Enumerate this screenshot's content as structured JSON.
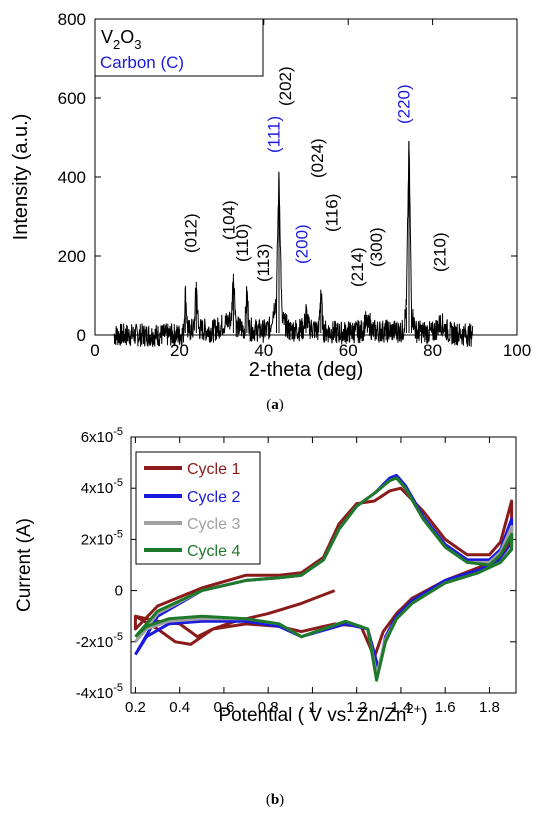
{
  "chart_data": [
    {
      "type": "line",
      "caption": "(a)",
      "xlabel": "2-theta (deg)",
      "ylabel": "Intensity (a.u.)",
      "xlim": [
        0,
        100
      ],
      "ylim": [
        0,
        800
      ],
      "xticks": [
        "0",
        "20",
        "40",
        "60",
        "80",
        "100"
      ],
      "yticks": [
        "0",
        "200",
        "400",
        "600",
        "800"
      ],
      "legend": {
        "position": "top-left",
        "entries": [
          {
            "label": "V2O3",
            "color": "#000000"
          },
          {
            "label": "Carbon (C)",
            "color": "#1a1adf"
          }
        ]
      },
      "series": [
        {
          "color": "#000000",
          "x": [
            4.5,
            10,
            15,
            20,
            21,
            21.4,
            22,
            23.5,
            24,
            24.5,
            28,
            32.3,
            32.8,
            33.5,
            35.5,
            36,
            36.6,
            40,
            41.5,
            42,
            43,
            43.6,
            44.3,
            46,
            49.5,
            50,
            50.6,
            53,
            53.5,
            54.1,
            58,
            63.5,
            64,
            64.6,
            65.2,
            65.6,
            73,
            73.8,
            74.4,
            75,
            76,
            80,
            82,
            84,
            89.5
          ],
          "y": [
            0,
            0,
            0,
            0,
            5,
            110,
            10,
            15,
            135,
            15,
            10,
            40,
            155,
            20,
            15,
            110,
            15,
            10,
            18,
            50,
            95,
            410,
            40,
            12,
            15,
            60,
            20,
            10,
            115,
            10,
            5,
            10,
            35,
            20,
            30,
            10,
            10,
            70,
            490,
            60,
            10,
            5,
            30,
            5,
            0
          ]
        }
      ],
      "annotations": [
        {
          "label": "(012)",
          "x": 24,
          "color": "#000000"
        },
        {
          "label": "(104)",
          "x": 33,
          "color": "#000000"
        },
        {
          "label": "(110)",
          "x": 36.2,
          "color": "#000000"
        },
        {
          "label": "(113)",
          "x": 41.2,
          "color": "#000000"
        },
        {
          "label": "(111)",
          "x": 43.7,
          "color": "#1a1adf"
        },
        {
          "label": "(202)",
          "x": 46.5,
          "color": "#000000"
        },
        {
          "label": "(200)",
          "x": 50.3,
          "color": "#1a1adf"
        },
        {
          "label": "(024)",
          "x": 54,
          "color": "#000000"
        },
        {
          "label": "(116)",
          "x": 57.5,
          "color": "#000000"
        },
        {
          "label": "(214)",
          "x": 63.5,
          "color": "#000000"
        },
        {
          "label": "(300)",
          "x": 68,
          "color": "#000000"
        },
        {
          "label": "(220)",
          "x": 74.5,
          "color": "#1a1adf"
        },
        {
          "label": "(210)",
          "x": 83,
          "color": "#000000"
        }
      ]
    },
    {
      "type": "line",
      "caption": "(b)",
      "xlabel": "Potential ( V vs. Zn/Zn2+)",
      "ylabel": "Current (A)",
      "xlim": [
        0.18,
        1.92
      ],
      "ylim": [
        -4e-05,
        6e-05
      ],
      "xticks": [
        "0.2",
        "0.4",
        "0.6",
        "0.8",
        "1",
        "1.2",
        "1.4",
        "1.6",
        "1.8"
      ],
      "yticks": [
        "-4x10-5",
        "-2x10-5",
        "0",
        "2x10-5",
        "4x10-5",
        "6x10-5"
      ],
      "legend": {
        "position": "top-left"
      },
      "series": [
        {
          "name": "Cycle 1",
          "color": "#8b1a1a",
          "x": [
            1.1,
            0.95,
            0.8,
            0.65,
            0.55,
            0.45,
            0.38,
            0.3,
            0.2,
            0.2,
            0.3,
            0.5,
            0.7,
            0.85,
            0.95,
            1.05,
            1.12,
            1.2,
            1.28,
            1.35,
            1.4,
            1.5,
            1.6,
            1.7,
            1.8,
            1.85,
            1.9,
            1.9,
            1.85,
            1.75,
            1.6,
            1.45,
            1.38,
            1.32,
            1.28,
            1.22,
            1.1,
            0.95,
            0.85,
            0.7,
            0.55,
            0.48,
            0.4,
            0.3,
            0.2
          ],
          "y": [
            0.0,
            -0.5,
            -0.9,
            -1.2,
            -1.5,
            -2.1,
            -2.0,
            -1.5,
            -1.0,
            -1.5,
            -0.6,
            0.1,
            0.6,
            0.6,
            0.7,
            1.3,
            2.6,
            3.4,
            3.5,
            3.9,
            4.0,
            3.1,
            2.0,
            1.4,
            1.4,
            1.9,
            3.5,
            2.0,
            1.3,
            0.9,
            0.4,
            -0.3,
            -0.9,
            -1.6,
            -2.6,
            -1.4,
            -1.3,
            -1.6,
            -1.4,
            -1.3,
            -1.5,
            -1.8,
            -1.3,
            -1.2,
            -1.0
          ]
        },
        {
          "name": "Cycle 2",
          "color": "#1a1adf",
          "x": [
            0.2,
            0.3,
            0.5,
            0.7,
            0.85,
            0.95,
            1.05,
            1.12,
            1.2,
            1.28,
            1.35,
            1.38,
            1.42,
            1.5,
            1.6,
            1.7,
            1.8,
            1.85,
            1.9,
            1.9,
            1.85,
            1.75,
            1.6,
            1.45,
            1.38,
            1.33,
            1.3,
            1.25,
            1.15,
            0.95,
            0.85,
            0.7,
            0.5,
            0.35,
            0.25,
            0.2
          ],
          "y": [
            -2.5,
            -1.0,
            0.0,
            0.4,
            0.5,
            0.6,
            1.2,
            2.4,
            3.3,
            3.8,
            4.4,
            4.5,
            4.1,
            2.9,
            1.8,
            1.2,
            1.2,
            1.6,
            2.8,
            1.8,
            1.2,
            0.8,
            0.4,
            -0.4,
            -1.0,
            -1.8,
            -3.1,
            -1.5,
            -1.3,
            -1.8,
            -1.4,
            -1.2,
            -1.2,
            -1.3,
            -1.8,
            -2.5
          ]
        },
        {
          "name": "Cycle 3",
          "color": "#a0a0a0",
          "x": [
            0.2,
            0.3,
            0.5,
            0.7,
            0.85,
            0.95,
            1.05,
            1.12,
            1.2,
            1.28,
            1.35,
            1.38,
            1.42,
            1.5,
            1.6,
            1.7,
            1.8,
            1.85,
            1.9,
            1.9,
            1.85,
            1.75,
            1.6,
            1.45,
            1.38,
            1.33,
            1.29,
            1.25,
            1.15,
            0.95,
            0.85,
            0.7,
            0.5,
            0.35,
            0.25,
            0.2
          ],
          "y": [
            -2.0,
            -0.9,
            0.0,
            0.4,
            0.5,
            0.6,
            1.2,
            2.4,
            3.3,
            3.8,
            4.3,
            4.4,
            4.0,
            2.8,
            1.7,
            1.1,
            1.1,
            1.5,
            2.5,
            1.7,
            1.1,
            0.7,
            0.3,
            -0.5,
            -1.1,
            -1.9,
            -3.3,
            -1.5,
            -1.2,
            -1.8,
            -1.3,
            -1.1,
            -1.1,
            -1.2,
            -1.5,
            -2.0
          ]
        },
        {
          "name": "Cycle 4",
          "color": "#1e7a2a",
          "x": [
            0.2,
            0.3,
            0.5,
            0.7,
            0.85,
            0.95,
            1.05,
            1.12,
            1.2,
            1.28,
            1.35,
            1.38,
            1.42,
            1.5,
            1.6,
            1.7,
            1.8,
            1.85,
            1.9,
            1.9,
            1.85,
            1.75,
            1.6,
            1.45,
            1.38,
            1.33,
            1.29,
            1.25,
            1.15,
            0.95,
            0.85,
            0.7,
            0.5,
            0.35,
            0.25,
            0.2
          ],
          "y": [
            -1.8,
            -0.8,
            0.0,
            0.4,
            0.5,
            0.6,
            1.2,
            2.4,
            3.3,
            3.8,
            4.3,
            4.4,
            4.0,
            2.8,
            1.7,
            1.1,
            1.0,
            1.4,
            2.2,
            1.6,
            1.1,
            0.7,
            0.3,
            -0.5,
            -1.1,
            -2.0,
            -3.5,
            -1.5,
            -1.2,
            -1.8,
            -1.3,
            -1.1,
            -1.0,
            -1.1,
            -1.4,
            -1.8
          ]
        }
      ]
    }
  ]
}
